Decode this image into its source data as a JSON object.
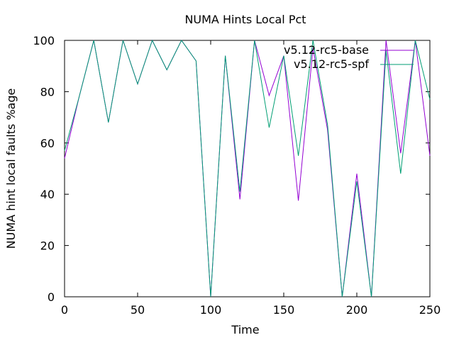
{
  "chart_data": {
    "type": "line",
    "title": "NUMA Hints Local Pct",
    "xlabel": "Time",
    "ylabel": "NUMA hint local faults %age",
    "xlim": [
      0,
      250
    ],
    "ylim": [
      0,
      100
    ],
    "xticks": [
      0,
      50,
      100,
      150,
      200,
      250
    ],
    "yticks": [
      0,
      20,
      40,
      60,
      80,
      100
    ],
    "grid": false,
    "legend_position": "top-right",
    "series": [
      {
        "name": "v5.12-rc5-base",
        "color": "#9400d3",
        "x": [
          0,
          10,
          20,
          30,
          40,
          50,
          60,
          70,
          80,
          90,
          100,
          110,
          120,
          130,
          140,
          150,
          160,
          170,
          180,
          190,
          200,
          210,
          220,
          230,
          240,
          250
        ],
        "y": [
          54,
          78,
          100,
          68,
          100,
          83,
          100,
          88.5,
          100,
          92,
          0,
          94,
          38,
          100,
          78.5,
          94,
          37.5,
          97,
          65,
          0,
          48,
          0,
          100,
          56,
          100,
          55
        ]
      },
      {
        "name": "v5.12-rc5-spf",
        "color": "#009e73",
        "x": [
          0,
          10,
          20,
          30,
          40,
          50,
          60,
          70,
          80,
          90,
          100,
          110,
          120,
          130,
          140,
          150,
          160,
          170,
          180,
          190,
          200,
          210,
          220,
          230,
          240,
          250
        ],
        "y": [
          57,
          78,
          100,
          68,
          100,
          83,
          100,
          88.5,
          100,
          92,
          0,
          94,
          41,
          100,
          66,
          94,
          55,
          100,
          67,
          0,
          45,
          0,
          96,
          48,
          100,
          77
        ]
      }
    ]
  }
}
